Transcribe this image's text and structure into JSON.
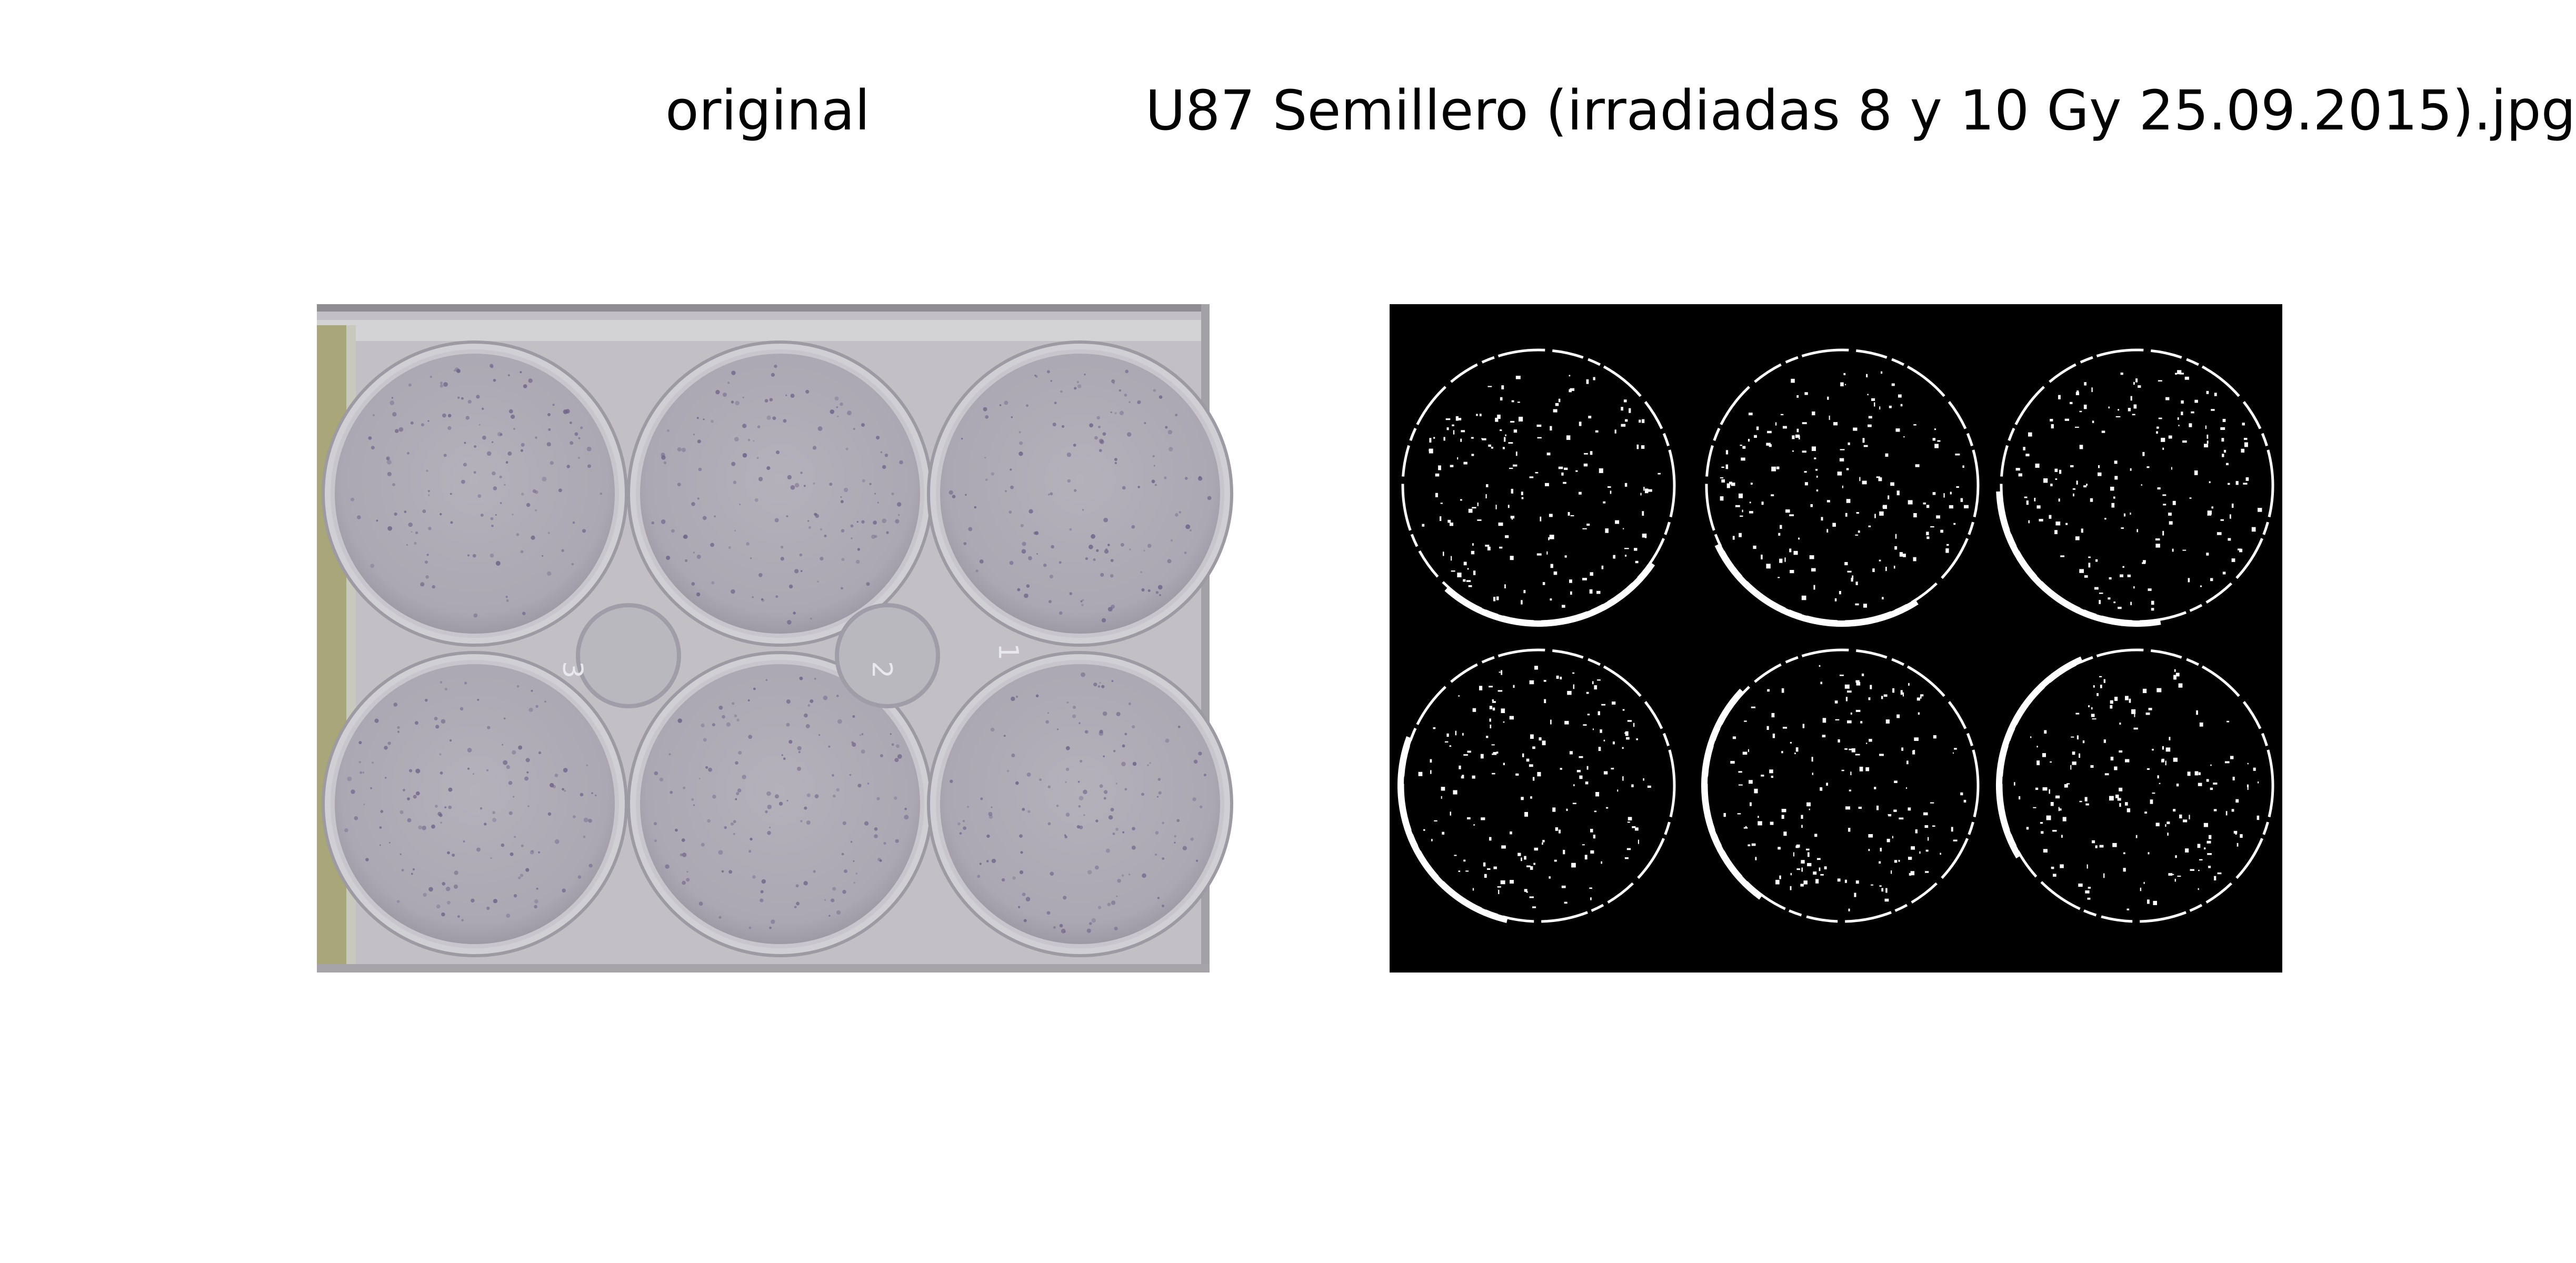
{
  "panels": [
    {
      "title": "original",
      "image": "six-well-plate-photo"
    },
    {
      "title": "U87 Semillero (irradiadas 8 y 10 Gy 25.09.2015).jpg",
      "image": "binary-threshold-mask"
    }
  ],
  "colors": {
    "background": "#ffffff",
    "plate": "#bdbbc1",
    "well": "#aeabb6",
    "mask_background": "#000000",
    "mask_foreground": "#ffffff"
  },
  "well_handwriting": [
    "3",
    "2",
    "1"
  ]
}
